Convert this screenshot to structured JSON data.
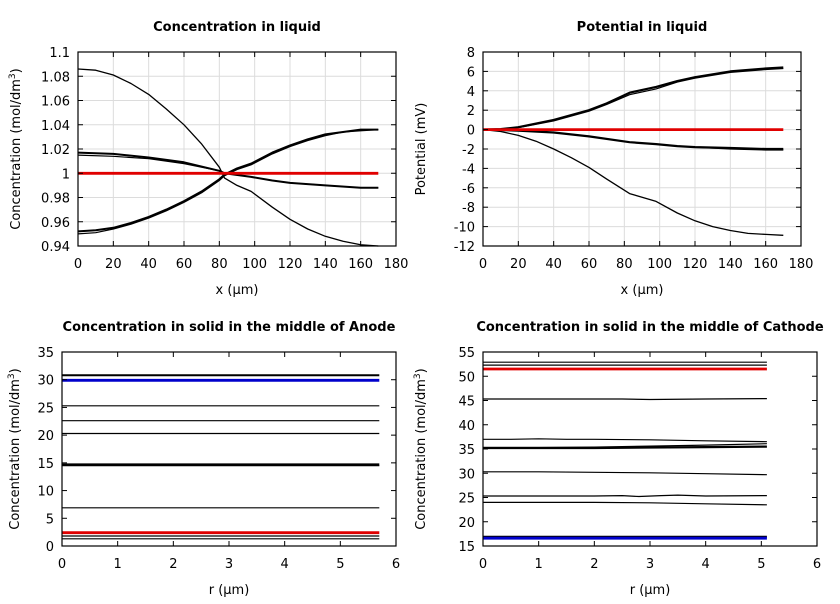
{
  "chart_data": [
    {
      "type": "line",
      "title": "Concentration in liquid",
      "xlabel": "x (µm)",
      "ylabel": "Concentration (mol/dm³)",
      "ylabel_main": "Concentration (mol/dm",
      "ylabel_sup": "3",
      "ylabel_tail": ")",
      "xlim": [
        0,
        180
      ],
      "ylim": [
        0.94,
        1.1
      ],
      "xticks": [
        0,
        20,
        40,
        60,
        80,
        100,
        120,
        140,
        160,
        180
      ],
      "xtick_labels": [
        "0",
        "20",
        "40",
        "60",
        "80",
        "100",
        "120",
        "140",
        "160",
        "180"
      ],
      "yticks": [
        0.94,
        0.96,
        0.98,
        1.0,
        1.02,
        1.04,
        1.06,
        1.08,
        1.1
      ],
      "ytick_labels": [
        "0.94",
        "0.96",
        "0.98",
        "1",
        "1.02",
        "1.04",
        "1.06",
        "1.08",
        "1.1"
      ],
      "grid": true,
      "series": [
        {
          "name": "t1",
          "color": "#000000",
          "width": 1.3,
          "x": [
            0,
            10,
            20,
            30,
            40,
            50,
            60,
            70,
            80,
            83,
            90,
            98,
            110,
            120,
            130,
            140,
            150,
            160,
            170
          ],
          "y": [
            1.086,
            1.085,
            1.081,
            1.074,
            1.065,
            1.053,
            1.04,
            1.024,
            1.005,
            0.996,
            0.99,
            0.985,
            0.972,
            0.962,
            0.954,
            0.948,
            0.944,
            0.941,
            0.94
          ]
        },
        {
          "name": "t2",
          "color": "#000000",
          "width": 2.0,
          "x": [
            0,
            20,
            40,
            60,
            80,
            83,
            98,
            110,
            120,
            140,
            160,
            170
          ],
          "y": [
            1.017,
            1.016,
            1.013,
            1.009,
            1.002,
            1.0,
            0.997,
            0.994,
            0.992,
            0.99,
            0.988,
            0.988
          ]
        },
        {
          "name": "t3",
          "color": "#000000",
          "width": 1.2,
          "x": [
            0,
            20,
            40,
            60,
            80,
            83,
            98,
            110,
            120,
            140,
            160,
            170
          ],
          "y": [
            1.015,
            1.014,
            1.012,
            1.008,
            1.002,
            1.0,
            0.997,
            0.994,
            0.992,
            0.99,
            0.988,
            0.988
          ]
        },
        {
          "name": "t4",
          "color": "#000000",
          "width": 2.0,
          "x": [
            0,
            10,
            20,
            30,
            40,
            50,
            60,
            70,
            80,
            83,
            90,
            98,
            110,
            120,
            130,
            140,
            150,
            160,
            170
          ],
          "y": [
            0.952,
            0.953,
            0.955,
            0.959,
            0.964,
            0.97,
            0.977,
            0.985,
            0.995,
            0.999,
            1.004,
            1.008,
            1.017,
            1.023,
            1.028,
            1.032,
            1.034,
            1.036,
            1.036
          ]
        },
        {
          "name": "t5",
          "color": "#000000",
          "width": 1.2,
          "x": [
            0,
            10,
            20,
            30,
            40,
            50,
            60,
            70,
            80,
            83,
            90,
            98,
            110,
            120,
            130,
            140,
            150,
            160,
            170
          ],
          "y": [
            0.95,
            0.951,
            0.954,
            0.958,
            0.963,
            0.969,
            0.976,
            0.984,
            0.994,
            0.998,
            1.003,
            1.007,
            1.016,
            1.022,
            1.027,
            1.031,
            1.034,
            1.035,
            1.036
          ]
        },
        {
          "name": "t0",
          "color": "#e00000",
          "width": 2.8,
          "x": [
            0,
            170
          ],
          "y": [
            1.0,
            1.0
          ]
        }
      ]
    },
    {
      "type": "line",
      "title": "Potential in liquid",
      "xlabel": "x (µm)",
      "ylabel": "Potential (mV)",
      "ylabel_main": "Potential (mV)",
      "ylabel_sup": "",
      "ylabel_tail": "",
      "xlim": [
        0,
        180
      ],
      "ylim": [
        -12,
        8
      ],
      "xticks": [
        0,
        20,
        40,
        60,
        80,
        100,
        120,
        140,
        160,
        180
      ],
      "xtick_labels": [
        "0",
        "20",
        "40",
        "60",
        "80",
        "100",
        "120",
        "140",
        "160",
        "180"
      ],
      "yticks": [
        -12,
        -10,
        -8,
        -6,
        -4,
        -2,
        0,
        2,
        4,
        6,
        8
      ],
      "ytick_labels": [
        "-12",
        "-10",
        "-8",
        "-6",
        "-4",
        "-2",
        "0",
        "2",
        "4",
        "6",
        "8"
      ],
      "grid": true,
      "series": [
        {
          "name": "p1",
          "color": "#000000",
          "width": 2.2,
          "x": [
            0,
            10,
            20,
            40,
            60,
            70,
            83,
            98,
            110,
            120,
            140,
            160,
            170
          ],
          "y": [
            0,
            0.05,
            0.25,
            1.0,
            2.0,
            2.7,
            3.8,
            4.4,
            5.0,
            5.4,
            6.0,
            6.3,
            6.4
          ]
        },
        {
          "name": "p2",
          "color": "#000000",
          "width": 1.2,
          "x": [
            0,
            10,
            20,
            40,
            60,
            70,
            83,
            98,
            110,
            120,
            140,
            160,
            170
          ],
          "y": [
            0,
            0.05,
            0.2,
            0.9,
            1.9,
            2.6,
            3.6,
            4.2,
            4.9,
            5.3,
            5.9,
            6.2,
            6.3
          ]
        },
        {
          "name": "p3",
          "color": "#000000",
          "width": 2.2,
          "x": [
            0,
            20,
            40,
            60,
            83,
            98,
            110,
            120,
            140,
            160,
            170
          ],
          "y": [
            0,
            -0.1,
            -0.3,
            -0.7,
            -1.3,
            -1.5,
            -1.7,
            -1.8,
            -1.9,
            -2.0,
            -2.0
          ]
        },
        {
          "name": "p4",
          "color": "#000000",
          "width": 1.2,
          "x": [
            0,
            20,
            40,
            60,
            83,
            98,
            110,
            120,
            140,
            160,
            170
          ],
          "y": [
            0,
            -0.1,
            -0.3,
            -0.7,
            -1.3,
            -1.5,
            -1.7,
            -1.8,
            -2.0,
            -2.1,
            -2.1
          ]
        },
        {
          "name": "p5",
          "color": "#000000",
          "width": 1.3,
          "x": [
            0,
            10,
            20,
            30,
            40,
            50,
            60,
            70,
            83,
            98,
            110,
            120,
            130,
            140,
            150,
            160,
            170
          ],
          "y": [
            0,
            -0.2,
            -0.6,
            -1.2,
            -2.0,
            -2.9,
            -3.9,
            -5.1,
            -6.6,
            -7.4,
            -8.6,
            -9.4,
            -10.0,
            -10.4,
            -10.7,
            -10.8,
            -10.9
          ]
        },
        {
          "name": "p0",
          "color": "#e00000",
          "width": 2.8,
          "x": [
            0,
            170
          ],
          "y": [
            0,
            0
          ]
        }
      ]
    },
    {
      "type": "line",
      "title": "Concentration in solid in the middle of Anode",
      "xlabel": "r (µm)",
      "ylabel": "Concentration (mol/dm³)",
      "ylabel_main": "Concentration (mol/dm",
      "ylabel_sup": "3",
      "ylabel_tail": ")",
      "xlim": [
        0,
        6
      ],
      "ylim": [
        0,
        35
      ],
      "xticks": [
        0,
        1,
        2,
        3,
        4,
        5,
        6
      ],
      "xtick_labels": [
        "0",
        "1",
        "2",
        "3",
        "4",
        "5",
        "6"
      ],
      "yticks": [
        0,
        5,
        10,
        15,
        20,
        25,
        30,
        35
      ],
      "ytick_labels": [
        "0",
        "5",
        "10",
        "15",
        "20",
        "25",
        "30",
        "35"
      ],
      "grid": false,
      "series": [
        {
          "name": "a1",
          "color": "#000000",
          "width": 2.0,
          "x": [
            0,
            5.7
          ],
          "y": [
            30.8,
            30.8
          ]
        },
        {
          "name": "a2",
          "color": "#0000cc",
          "width": 2.8,
          "x": [
            0,
            5.7
          ],
          "y": [
            29.9,
            29.9
          ]
        },
        {
          "name": "a3",
          "color": "#000000",
          "width": 1.2,
          "x": [
            0,
            5.7
          ],
          "y": [
            25.3,
            25.3
          ]
        },
        {
          "name": "a4",
          "color": "#000000",
          "width": 1.2,
          "x": [
            0,
            5.7
          ],
          "y": [
            22.6,
            22.6
          ]
        },
        {
          "name": "a5",
          "color": "#000000",
          "width": 1.2,
          "x": [
            0,
            5.7
          ],
          "y": [
            20.3,
            20.3
          ]
        },
        {
          "name": "a6",
          "color": "#000000",
          "width": 2.2,
          "x": [
            0,
            5.7
          ],
          "y": [
            14.7,
            14.7
          ]
        },
        {
          "name": "a7",
          "color": "#000000",
          "width": 1.2,
          "x": [
            0,
            5.7
          ],
          "y": [
            14.5,
            14.5
          ]
        },
        {
          "name": "a8",
          "color": "#000000",
          "width": 1.2,
          "x": [
            0,
            5.7
          ],
          "y": [
            6.9,
            6.9
          ]
        },
        {
          "name": "a9",
          "color": "#e00000",
          "width": 2.8,
          "x": [
            0,
            5.7
          ],
          "y": [
            2.4,
            2.4
          ]
        },
        {
          "name": "a10",
          "color": "#000000",
          "width": 1.2,
          "x": [
            0,
            5.7
          ],
          "y": [
            1.8,
            1.8
          ]
        },
        {
          "name": "a11",
          "color": "#000000",
          "width": 1.2,
          "x": [
            0,
            5.7
          ],
          "y": [
            1.3,
            1.3
          ]
        }
      ]
    },
    {
      "type": "line",
      "title": "Concentration in solid in the middle of Cathode",
      "xlabel": "r (µm)",
      "ylabel": "Concentration (mol/dm³)",
      "ylabel_main": "Concentration (mol/dm",
      "ylabel_sup": "3",
      "ylabel_tail": ")",
      "xlim": [
        0,
        6
      ],
      "ylim": [
        15,
        55
      ],
      "xticks": [
        0,
        1,
        2,
        3,
        4,
        5,
        6
      ],
      "xtick_labels": [
        "0",
        "1",
        "2",
        "3",
        "4",
        "5",
        "6"
      ],
      "yticks": [
        15,
        20,
        25,
        30,
        35,
        40,
        45,
        50,
        55
      ],
      "ytick_labels": [
        "15",
        "20",
        "25",
        "30",
        "35",
        "40",
        "45",
        "50",
        "55"
      ],
      "grid": false,
      "series": [
        {
          "name": "c1",
          "color": "#000000",
          "width": 1.2,
          "x": [
            0,
            5.1
          ],
          "y": [
            52.9,
            52.9
          ]
        },
        {
          "name": "c2",
          "color": "#000000",
          "width": 1.2,
          "x": [
            0,
            5.1
          ],
          "y": [
            52.3,
            52.3
          ]
        },
        {
          "name": "c3",
          "color": "#e00000",
          "width": 2.8,
          "x": [
            0,
            5.1
          ],
          "y": [
            51.5,
            51.5
          ]
        },
        {
          "name": "c4",
          "color": "#000000",
          "width": 1.2,
          "x": [
            0,
            1,
            2,
            2.5,
            3,
            4,
            5.1
          ],
          "y": [
            45.3,
            45.3,
            45.3,
            45.3,
            45.2,
            45.3,
            45.4
          ]
        },
        {
          "name": "c5",
          "color": "#000000",
          "width": 1.2,
          "x": [
            0,
            0.5,
            1,
            1.5,
            2,
            3,
            4,
            5.1
          ],
          "y": [
            37.0,
            37.0,
            37.1,
            37.0,
            37.0,
            36.9,
            36.7,
            36.5
          ]
        },
        {
          "name": "c6",
          "color": "#000000",
          "width": 1.2,
          "x": [
            0,
            1,
            2,
            3,
            4,
            5.1
          ],
          "y": [
            35.3,
            35.3,
            35.4,
            35.6,
            35.8,
            36.1
          ]
        },
        {
          "name": "c7",
          "color": "#000000",
          "width": 2.2,
          "x": [
            0,
            1,
            2,
            3,
            4,
            5.1
          ],
          "y": [
            35.2,
            35.2,
            35.2,
            35.3,
            35.4,
            35.5
          ]
        },
        {
          "name": "c8",
          "color": "#000000",
          "width": 1.2,
          "x": [
            0,
            1,
            2,
            3,
            4,
            5.1
          ],
          "y": [
            30.3,
            30.3,
            30.2,
            30.1,
            29.9,
            29.7
          ]
        },
        {
          "name": "c9",
          "color": "#000000",
          "width": 1.2,
          "x": [
            0,
            1,
            2,
            2.5,
            2.8,
            3.2,
            3.5,
            4,
            5.1
          ],
          "y": [
            25.3,
            25.3,
            25.3,
            25.4,
            25.2,
            25.4,
            25.5,
            25.3,
            25.4
          ]
        },
        {
          "name": "c10",
          "color": "#000000",
          "width": 1.2,
          "x": [
            0,
            1,
            2,
            3,
            4,
            5.1
          ],
          "y": [
            24.0,
            24.0,
            24.0,
            23.9,
            23.7,
            23.5
          ]
        },
        {
          "name": "c11",
          "color": "#000000",
          "width": 2.2,
          "x": [
            0,
            5.1
          ],
          "y": [
            16.9,
            16.9
          ]
        },
        {
          "name": "c12",
          "color": "#0000cc",
          "width": 2.8,
          "x": [
            0,
            5.1
          ],
          "y": [
            16.6,
            16.6
          ]
        }
      ]
    }
  ]
}
